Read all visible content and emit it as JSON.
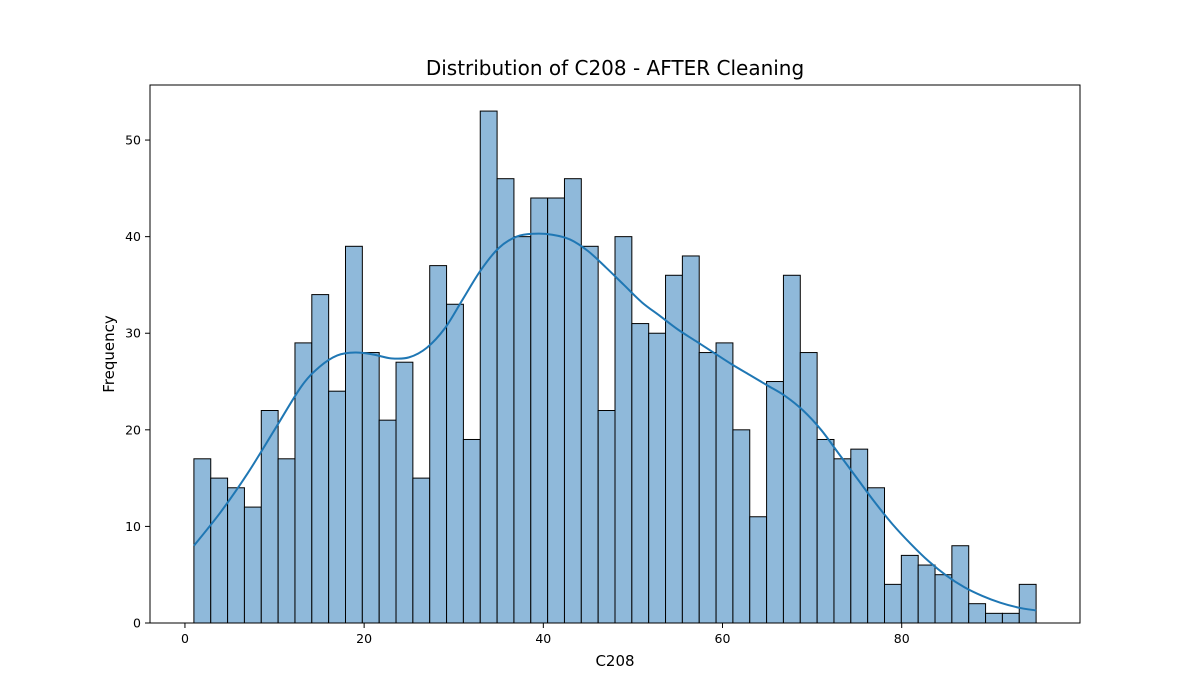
{
  "chart_data": {
    "type": "bar",
    "subtype": "histogram",
    "title": "Distribution of C208 - AFTER Cleaning",
    "xlabel": "C208",
    "ylabel": "Frequency",
    "xlim": [
      -3.9,
      99.9
    ],
    "ylim": [
      0,
      55.7
    ],
    "xticks": [
      0,
      20,
      40,
      60,
      80
    ],
    "yticks": [
      0,
      10,
      20,
      30,
      40,
      50
    ],
    "bin_start": 1,
    "bin_width": 1.88,
    "counts": [
      17,
      15,
      14,
      12,
      22,
      17,
      29,
      34,
      24,
      39,
      28,
      21,
      27,
      15,
      37,
      33,
      19,
      53,
      46,
      40,
      44,
      44,
      46,
      39,
      22,
      40,
      31,
      30,
      36,
      38,
      28,
      29,
      20,
      11,
      25,
      36,
      28,
      19,
      17,
      18,
      14,
      4,
      7,
      6,
      5,
      8,
      2,
      1,
      1,
      4
    ],
    "kde": {
      "x": [
        1,
        4,
        7,
        10,
        13,
        15,
        17,
        19,
        21,
        23,
        25,
        27,
        29,
        31,
        33,
        35,
        37,
        39,
        41,
        43,
        45,
        47,
        49,
        51,
        53,
        55,
        57,
        59,
        61,
        63,
        65,
        67,
        69,
        71,
        73,
        75,
        77,
        79,
        81,
        83,
        85,
        87,
        89,
        91,
        93,
        95
      ],
      "y": [
        8,
        11.5,
        15.5,
        20,
        24.5,
        26.5,
        27.7,
        28,
        27.8,
        27.4,
        27.5,
        28.5,
        30.5,
        33.5,
        36.5,
        38.8,
        40,
        40.3,
        40.2,
        39.7,
        38.5,
        36.8,
        35,
        33.2,
        31.8,
        30.4,
        29.2,
        28,
        26.8,
        25.7,
        24.6,
        23.5,
        22,
        20,
        17.5,
        15,
        12.5,
        10.2,
        8.2,
        6.4,
        4.9,
        3.7,
        2.8,
        2.1,
        1.6,
        1.3
      ]
    },
    "bar_color": "#8fb9da",
    "line_color": "#1f77b4",
    "grid": false
  }
}
